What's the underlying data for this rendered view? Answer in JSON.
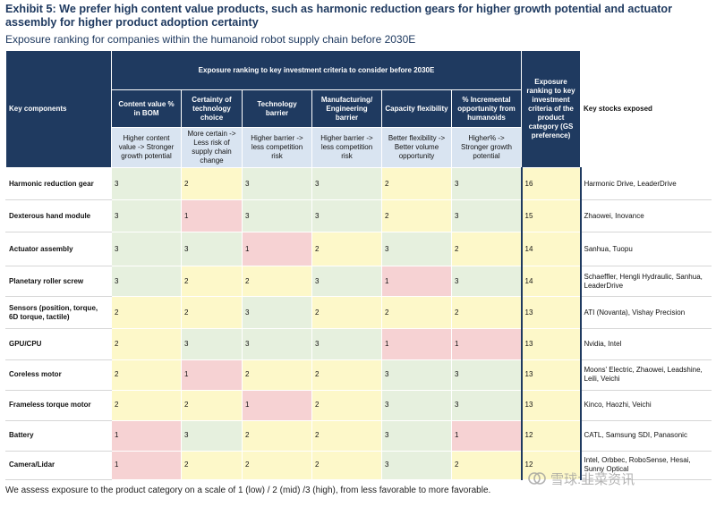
{
  "title": "Exhibit 5: We prefer high content value products, such as harmonic reduction gears for higher growth potential and actuator assembly for higher product adoption certainty",
  "subtitle": "Exposure ranking for companies within the humanoid robot supply chain before 2030E",
  "header": {
    "key_components": "Key components",
    "group": "Exposure ranking to key investment criteria to consider before 2030E",
    "gs_col": "Exposure ranking to key investment criteria of the product category (GS preference)",
    "stocks_col": "Key stocks exposed",
    "criteria": [
      {
        "label": "Content value % in BOM",
        "desc": "Higher content value -> Stronger growth potential"
      },
      {
        "label": "Certainty of technology choice",
        "desc": "More certain -> Less risk of supply chain change"
      },
      {
        "label": "Technology barrier",
        "desc": "Higher barrier -> less competition risk"
      },
      {
        "label": "Manufacturing/ Engineering barrier",
        "desc": "Higher barrier -> less competition risk"
      },
      {
        "label": "Capacity flexibility",
        "desc": "Better flexibility -> Better volume opportunity"
      },
      {
        "label": "% Incremental opportunity from humanoids",
        "desc": "Higher% -> Stronger growth potential"
      }
    ]
  },
  "rows": [
    {
      "name": "Harmonic reduction gear",
      "scores": [
        "3",
        "2",
        "3",
        "3",
        "2",
        "3"
      ],
      "gs": "16",
      "stocks": "Harmonic Drive, LeaderDrive"
    },
    {
      "name": "Dexterous hand module",
      "scores": [
        "3",
        "1",
        "3",
        "3",
        "2",
        "3"
      ],
      "gs": "15",
      "stocks": "Zhaowei, Inovance"
    },
    {
      "name": "Actuator assembly",
      "scores": [
        "3",
        "3",
        "1",
        "2",
        "3",
        "2"
      ],
      "gs": "14",
      "stocks": "Sanhua, Tuopu"
    },
    {
      "name": "Planetary roller screw",
      "scores": [
        "3",
        "2",
        "2",
        "3",
        "1",
        "3"
      ],
      "gs": "14",
      "stocks": "Schaeffler, Hengli Hydraulic, Sanhua, LeaderDrive"
    },
    {
      "name": "Sensors (position, torque, 6D torque, tactile)",
      "scores": [
        "2",
        "2",
        "3",
        "2",
        "2",
        "2"
      ],
      "gs": "13",
      "stocks": "ATI (Novanta), Vishay Precision"
    },
    {
      "name": "GPU/CPU",
      "scores": [
        "2",
        "3",
        "3",
        "3",
        "1",
        "1"
      ],
      "gs": "13",
      "stocks": "Nvidia, Intel"
    },
    {
      "name": "Coreless motor",
      "scores": [
        "2",
        "1",
        "2",
        "2",
        "3",
        "3"
      ],
      "gs": "13",
      "stocks": "Moons' Electric, Zhaowei, Leadshine, Leili, Veichi"
    },
    {
      "name": "Frameless torque motor",
      "scores": [
        "2",
        "2",
        "1",
        "2",
        "3",
        "3"
      ],
      "gs": "13",
      "stocks": "Kinco, Haozhi, Veichi"
    },
    {
      "name": "Battery",
      "scores": [
        "1",
        "3",
        "2",
        "2",
        "3",
        "1"
      ],
      "gs": "12",
      "stocks": "CATL, Samsung SDI, Panasonic"
    },
    {
      "name": "Camera/Lidar",
      "scores": [
        "1",
        "2",
        "2",
        "2",
        "3",
        "2"
      ],
      "gs": "12",
      "stocks": "Intel, Orbbec, RoboSense, Hesai, Sunny Optical"
    }
  ],
  "footnote": "We assess exposure to the product category on a scale of 1 (low) / 2 (mid) /3 (high), from less favorable to more favorable.",
  "watermark": "雪球:韭菜资讯",
  "colors": {
    "navy": "#1f3a60",
    "high": "#e6f0de",
    "mid": "#fdf8c9",
    "low": "#f6d2d3",
    "subheader": "#d9e4f1"
  }
}
